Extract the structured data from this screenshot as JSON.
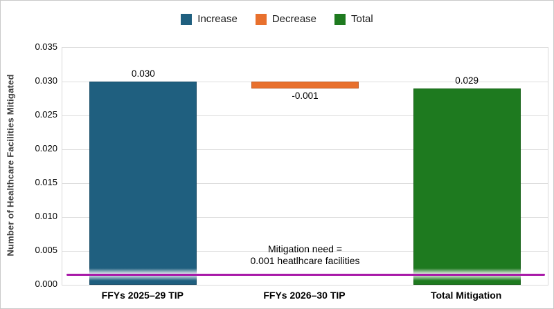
{
  "chart_data": {
    "type": "bar",
    "subtype": "waterfall",
    "title": "",
    "ylabel": "Number of Healthcare Facilities Mitigated",
    "xlabel": "",
    "ylim": [
      0,
      0.035
    ],
    "grid": true,
    "legend_position": "top",
    "categories": [
      "FFYs 2025–29 TIP",
      "FFYs 2026–30 TIP",
      "Total Mitigation"
    ],
    "yticks": [
      0.0,
      0.005,
      0.01,
      0.015,
      0.02,
      0.025,
      0.03,
      0.035
    ],
    "ytick_labels": [
      "0.000",
      "0.005",
      "0.010",
      "0.015",
      "0.020",
      "0.025",
      "0.030",
      "0.035"
    ],
    "series": [
      {
        "name": "Increase",
        "color": "#1F5F7F",
        "value": 0.03,
        "start": 0.0,
        "end": 0.03,
        "label": "0.030"
      },
      {
        "name": "Decrease",
        "color": "#E8702D",
        "value": -0.001,
        "start": 0.03,
        "end": 0.029,
        "label": "-0.001"
      },
      {
        "name": "Total",
        "color": "#1E7A1F",
        "value": 0.029,
        "start": 0.0,
        "end": 0.029,
        "label": "0.029"
      }
    ],
    "reference_line": {
      "value": 0.0015,
      "color": "#A818A8",
      "annotation": {
        "line1": "Mitigation need =",
        "line2": "0.001 heatlhcare facilities"
      }
    }
  },
  "legend": {
    "entries": [
      {
        "label": "Increase",
        "color": "#1F5F7F"
      },
      {
        "label": "Decrease",
        "color": "#E8702D"
      },
      {
        "label": "Total",
        "color": "#1E7A1F"
      }
    ]
  }
}
